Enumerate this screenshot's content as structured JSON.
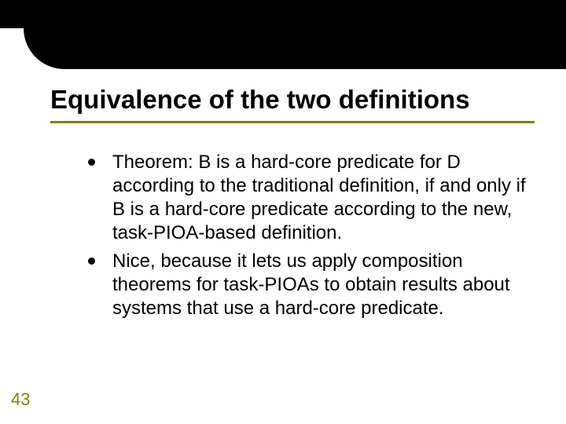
{
  "slide": {
    "title": "Equivalence of the two definitions",
    "page_number": "43",
    "bullets": [
      "Theorem:  B is a hard-core predicate for D according to the traditional definition, if and only if B is a hard-core predicate according to the new, task-PIOA-based definition.",
      "Nice, because it lets us apply composition theorems for task-PIOAs to obtain results about systems that use a hard-core predicate."
    ]
  },
  "style": {
    "background_color": "#ffffff",
    "top_shape_color": "#000000",
    "top_shape_height": 88,
    "top_shape_radius": 52,
    "title_color": "#000000",
    "title_fontsize": 33,
    "title_fontweight": "bold",
    "underline_color": "#808000",
    "underline_thickness": 3,
    "bullet_dot_color": "#000000",
    "bullet_dot_size": 9,
    "body_color": "#000000",
    "body_fontsize": 24,
    "page_number_color": "#808000",
    "page_number_fontsize": 22
  }
}
